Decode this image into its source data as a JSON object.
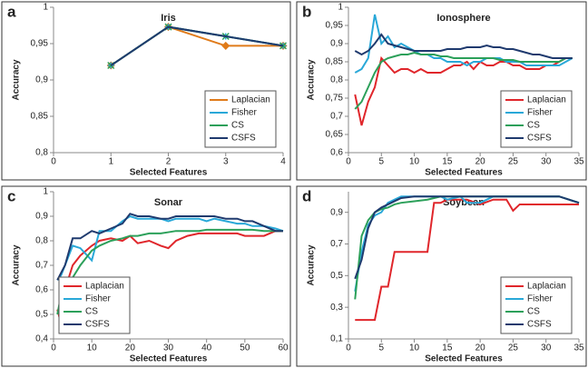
{
  "chart_data": [
    {
      "type": "line",
      "label": "a",
      "title": "Iris",
      "x_label": "Selected Features",
      "y_label": "Accuracy",
      "x": [
        1,
        2,
        3,
        4
      ],
      "series": [
        {
          "name": "Laplacian",
          "color": "#e07b1a",
          "marker": "diamond",
          "values": [
            0.92,
            0.973,
            0.947,
            0.947
          ]
        },
        {
          "name": "Fisher",
          "color": "#29a8d8",
          "marker": "plus",
          "values": [
            0.92,
            0.973,
            0.96,
            0.947
          ]
        },
        {
          "name": "CS",
          "color": "#2ca05a",
          "marker": "x",
          "values": [
            0.92,
            0.973,
            0.96,
            0.947
          ]
        },
        {
          "name": "CSFS",
          "color": "#1f3a6e",
          "values": [
            0.92,
            0.973,
            0.96,
            0.947
          ]
        }
      ],
      "xlim": [
        0,
        4
      ],
      "xticks": [
        0,
        1,
        2,
        3,
        4
      ],
      "ylim": [
        0.8,
        1
      ],
      "yticks": [
        {
          "value": 0.8,
          "label": "0,8"
        },
        {
          "value": 0.85,
          "label": "0,85"
        },
        {
          "value": 0.9,
          "label": "0,9"
        },
        {
          "value": 0.95,
          "label": "0,95"
        },
        1
      ],
      "legend": "lower right"
    },
    {
      "type": "line",
      "label": "b",
      "title": "Ionosphere",
      "x_label": "Selected Features",
      "y_label": "Accuracy",
      "x": [
        1,
        2,
        3,
        4,
        5,
        6,
        7,
        8,
        9,
        10,
        11,
        12,
        13,
        14,
        15,
        16,
        17,
        18,
        19,
        20,
        21,
        22,
        23,
        24,
        25,
        26,
        27,
        28,
        29,
        30,
        31,
        32,
        33,
        34
      ],
      "series": [
        {
          "name": "Laplacian",
          "color": "#e0262b",
          "values": [
            0.76,
            0.675,
            0.74,
            0.78,
            0.86,
            0.84,
            0.82,
            0.83,
            0.83,
            0.82,
            0.83,
            0.82,
            0.82,
            0.82,
            0.83,
            0.84,
            0.84,
            0.85,
            0.83,
            0.85,
            0.84,
            0.84,
            0.85,
            0.85,
            0.84,
            0.84,
            0.83,
            0.83,
            0.83,
            0.84,
            0.84,
            0.85,
            0.86,
            0.86
          ]
        },
        {
          "name": "Fisher",
          "color": "#29a8d8",
          "values": [
            0.82,
            0.83,
            0.86,
            0.98,
            0.9,
            0.92,
            0.89,
            0.9,
            0.89,
            0.88,
            0.87,
            0.87,
            0.86,
            0.86,
            0.85,
            0.85,
            0.85,
            0.84,
            0.85,
            0.85,
            0.86,
            0.86,
            0.86,
            0.85,
            0.85,
            0.85,
            0.84,
            0.84,
            0.84,
            0.84,
            0.84,
            0.84,
            0.85,
            0.86
          ]
        },
        {
          "name": "CS",
          "color": "#2ca05a",
          "values": [
            0.72,
            0.74,
            0.78,
            0.82,
            0.85,
            0.86,
            0.865,
            0.87,
            0.87,
            0.875,
            0.87,
            0.87,
            0.87,
            0.865,
            0.865,
            0.86,
            0.86,
            0.86,
            0.86,
            0.86,
            0.86,
            0.86,
            0.855,
            0.855,
            0.855,
            0.85,
            0.85,
            0.85,
            0.85,
            0.85,
            0.85,
            0.85,
            0.86,
            0.86
          ]
        },
        {
          "name": "CSFS",
          "color": "#1f3a6e",
          "values": [
            0.88,
            0.87,
            0.88,
            0.9,
            0.925,
            0.9,
            0.895,
            0.89,
            0.885,
            0.88,
            0.88,
            0.88,
            0.88,
            0.88,
            0.885,
            0.885,
            0.885,
            0.89,
            0.89,
            0.89,
            0.895,
            0.89,
            0.89,
            0.885,
            0.885,
            0.88,
            0.875,
            0.87,
            0.87,
            0.865,
            0.86,
            0.86,
            0.86,
            0.86
          ]
        }
      ],
      "xlim": [
        0,
        35
      ],
      "xticks": [
        0,
        5,
        10,
        15,
        20,
        25,
        30,
        35
      ],
      "ylim": [
        0.6,
        1
      ],
      "yticks": [
        {
          "value": 0.6,
          "label": "0,6"
        },
        {
          "value": 0.65,
          "label": "0,65"
        },
        {
          "value": 0.7,
          "label": "0,7"
        },
        {
          "value": 0.75,
          "label": "0,75"
        },
        {
          "value": 0.8,
          "label": "0,8"
        },
        {
          "value": 0.85,
          "label": "0,85"
        },
        {
          "value": 0.9,
          "label": "0,9"
        },
        {
          "value": 0.95,
          "label": "0,95"
        },
        1
      ],
      "legend": "lower right"
    },
    {
      "type": "line",
      "label": "c",
      "title": "Sonar",
      "x_label": "Selected Features",
      "y_label": "Accuracy",
      "x": [
        1,
        2,
        3,
        5,
        7,
        10,
        12,
        15,
        18,
        20,
        22,
        25,
        28,
        30,
        32,
        35,
        38,
        40,
        42,
        45,
        48,
        50,
        52,
        55,
        58,
        60
      ],
      "series": [
        {
          "name": "Laplacian",
          "color": "#e0262b",
          "values": [
            0.52,
            0.46,
            0.6,
            0.7,
            0.74,
            0.78,
            0.8,
            0.81,
            0.8,
            0.82,
            0.79,
            0.8,
            0.78,
            0.77,
            0.8,
            0.82,
            0.83,
            0.83,
            0.83,
            0.83,
            0.83,
            0.82,
            0.82,
            0.82,
            0.84,
            0.84
          ]
        },
        {
          "name": "Fisher",
          "color": "#29a8d8",
          "values": [
            0.64,
            0.66,
            0.7,
            0.78,
            0.77,
            0.72,
            0.84,
            0.84,
            0.88,
            0.9,
            0.89,
            0.89,
            0.89,
            0.88,
            0.89,
            0.89,
            0.89,
            0.88,
            0.89,
            0.88,
            0.87,
            0.87,
            0.86,
            0.86,
            0.85,
            0.84
          ]
        },
        {
          "name": "CS",
          "color": "#2ca05a",
          "values": [
            0.5,
            0.58,
            0.62,
            0.65,
            0.7,
            0.76,
            0.78,
            0.8,
            0.81,
            0.82,
            0.82,
            0.83,
            0.83,
            0.835,
            0.84,
            0.84,
            0.84,
            0.845,
            0.845,
            0.845,
            0.845,
            0.845,
            0.845,
            0.84,
            0.84,
            0.84
          ]
        },
        {
          "name": "CSFS",
          "color": "#1f3a6e",
          "values": [
            0.64,
            0.67,
            0.7,
            0.81,
            0.81,
            0.84,
            0.83,
            0.85,
            0.87,
            0.91,
            0.9,
            0.9,
            0.89,
            0.89,
            0.9,
            0.9,
            0.9,
            0.9,
            0.9,
            0.89,
            0.89,
            0.88,
            0.88,
            0.86,
            0.84,
            0.84
          ]
        }
      ],
      "xlim": [
        0,
        60
      ],
      "xticks": [
        0,
        10,
        20,
        30,
        40,
        50,
        60
      ],
      "ylim": [
        0.4,
        1
      ],
      "yticks": [
        {
          "value": 0.4,
          "label": "0,4"
        },
        {
          "value": 0.5,
          "label": "0,5"
        },
        {
          "value": 0.6,
          "label": "0,6"
        },
        {
          "value": 0.7,
          "label": "0,7"
        },
        {
          "value": 0.8,
          "label": "0,8"
        },
        {
          "value": 0.9,
          "label": "0,9"
        },
        1
      ],
      "legend": "lower left"
    },
    {
      "type": "line",
      "label": "d",
      "title": "Soybean",
      "x_label": "Selected Features",
      "y_label": "Accuracy",
      "x": [
        1,
        2,
        3,
        4,
        5,
        6,
        7,
        8,
        10,
        12,
        13,
        14,
        15,
        17,
        18,
        20,
        22,
        24,
        25,
        26,
        28,
        30,
        32,
        35
      ],
      "series": [
        {
          "name": "Laplacian",
          "color": "#e0262b",
          "values": [
            0.22,
            0.22,
            0.22,
            0.22,
            0.43,
            0.43,
            0.65,
            0.65,
            0.65,
            0.65,
            0.96,
            0.96,
            0.98,
            0.98,
            0.98,
            0.95,
            0.98,
            0.98,
            0.91,
            0.95,
            0.95,
            0.95,
            0.95,
            0.95
          ]
        },
        {
          "name": "Fisher",
          "color": "#29a8d8",
          "values": [
            0.4,
            0.65,
            0.82,
            0.88,
            0.9,
            0.96,
            0.98,
            1,
            1,
            1,
            1,
            1,
            0.98,
            1,
            0.96,
            0.96,
            1,
            1,
            1,
            1,
            1,
            1,
            1,
            0.96
          ]
        },
        {
          "name": "CS",
          "color": "#2ca05a",
          "values": [
            0.35,
            0.75,
            0.85,
            0.9,
            0.92,
            0.93,
            0.95,
            0.96,
            0.97,
            0.98,
            0.99,
            1,
            1,
            1,
            1,
            1,
            1,
            1,
            1,
            1,
            1,
            1,
            1,
            0.96
          ]
        },
        {
          "name": "CSFS",
          "color": "#1f3a6e",
          "values": [
            0.48,
            0.6,
            0.8,
            0.9,
            0.93,
            0.95,
            0.97,
            0.99,
            1,
            1,
            1,
            1,
            1,
            1,
            1,
            1,
            1,
            1,
            1,
            1,
            1,
            1,
            1,
            0.96
          ]
        }
      ],
      "xlim": [
        0,
        35
      ],
      "xticks": [
        0,
        5,
        10,
        15,
        20,
        25,
        30,
        35
      ],
      "ylim": [
        0.1,
        1.03
      ],
      "yticks": [
        {
          "value": 0.1,
          "label": "0,1"
        },
        {
          "value": 0.3,
          "label": "0,3"
        },
        {
          "value": 0.5,
          "label": "0,5"
        },
        {
          "value": 0.7,
          "label": "0,7"
        },
        {
          "value": 0.9,
          "label": "0,9"
        }
      ],
      "legend": "lower right"
    }
  ]
}
